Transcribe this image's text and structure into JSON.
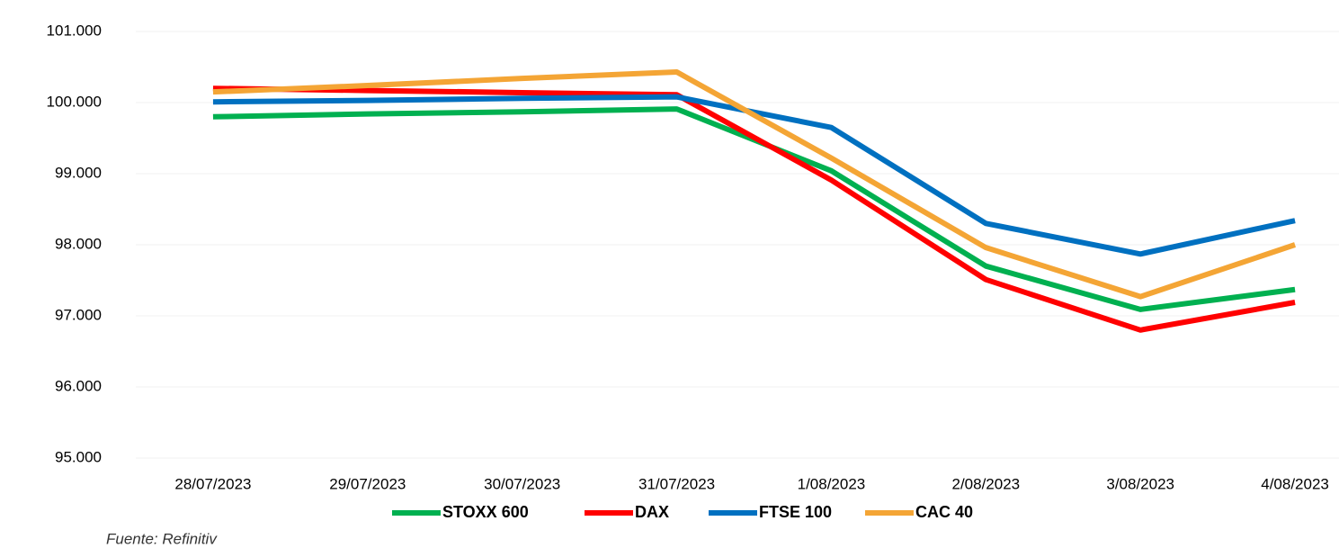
{
  "chart_data": {
    "type": "line",
    "categories": [
      "28/07/2023",
      "29/07/2023",
      "30/07/2023",
      "31/07/2023",
      "1/08/2023",
      "2/08/2023",
      "3/08/2023",
      "4/08/2023"
    ],
    "series": [
      {
        "name": "STOXX 600",
        "color": "#00b050",
        "values": [
          99.8,
          99.84,
          99.87,
          99.91,
          99.04,
          97.7,
          97.09,
          97.37
        ]
      },
      {
        "name": "DAX",
        "color": "#ff0000",
        "values": [
          100.2,
          100.17,
          100.14,
          100.11,
          98.91,
          97.51,
          96.8,
          97.19
        ]
      },
      {
        "name": "FTSE 100",
        "color": "#0070c0",
        "values": [
          100.01,
          100.03,
          100.06,
          100.08,
          99.65,
          98.3,
          97.87,
          98.34
        ]
      },
      {
        "name": "CAC 40",
        "color": "#f4a535",
        "values": [
          100.15,
          100.24,
          100.34,
          100.43,
          99.22,
          97.96,
          97.27,
          98.0
        ]
      }
    ],
    "ylim": [
      95,
      101
    ],
    "yticks": [
      {
        "value": 95,
        "label": "95.000"
      },
      {
        "value": 96,
        "label": "96.000"
      },
      {
        "value": 97,
        "label": "97.000"
      },
      {
        "value": 98,
        "label": "98.000"
      },
      {
        "value": 99,
        "label": "99.000"
      },
      {
        "value": 100,
        "label": "100.000"
      },
      {
        "value": 101,
        "label": "101.000"
      }
    ],
    "grid": true,
    "legend": "bottom",
    "source": "Fuente: Refinitiv"
  }
}
